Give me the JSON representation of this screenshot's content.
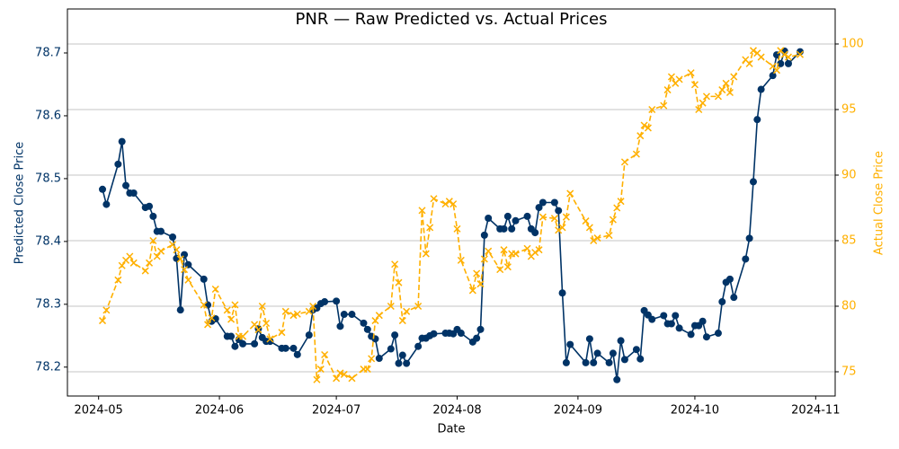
{
  "chart_data": {
    "type": "line",
    "title": "PNR — Raw Predicted vs. Actual Prices",
    "x_label": "Date",
    "y_label": "Predicted Close Price",
    "y2_label": "Actual Close Price",
    "x": [
      "2024-05-02",
      "2024-05-03",
      "2024-05-06",
      "2024-05-07",
      "2024-05-08",
      "2024-05-09",
      "2024-05-10",
      "2024-05-13",
      "2024-05-14",
      "2024-05-15",
      "2024-05-16",
      "2024-05-17",
      "2024-05-20",
      "2024-05-21",
      "2024-05-22",
      "2024-05-23",
      "2024-05-24",
      "2024-05-28",
      "2024-05-29",
      "2024-05-30",
      "2024-05-31",
      "2024-06-03",
      "2024-06-04",
      "2024-06-05",
      "2024-06-06",
      "2024-06-07",
      "2024-06-10",
      "2024-06-11",
      "2024-06-12",
      "2024-06-13",
      "2024-06-14",
      "2024-06-17",
      "2024-06-18",
      "2024-06-20",
      "2024-06-21",
      "2024-06-24",
      "2024-06-25",
      "2024-06-26",
      "2024-06-27",
      "2024-06-28",
      "2024-07-01",
      "2024-07-02",
      "2024-07-03",
      "2024-07-05",
      "2024-07-08",
      "2024-07-09",
      "2024-07-10",
      "2024-07-11",
      "2024-07-12",
      "2024-07-15",
      "2024-07-16",
      "2024-07-17",
      "2024-07-18",
      "2024-07-19",
      "2024-07-22",
      "2024-07-23",
      "2024-07-24",
      "2024-07-25",
      "2024-07-26",
      "2024-07-29",
      "2024-07-30",
      "2024-07-31",
      "2024-08-01",
      "2024-08-02",
      "2024-08-05",
      "2024-08-06",
      "2024-08-07",
      "2024-08-08",
      "2024-08-09",
      "2024-08-12",
      "2024-08-13",
      "2024-08-14",
      "2024-08-15",
      "2024-08-16",
      "2024-08-19",
      "2024-08-20",
      "2024-08-21",
      "2024-08-22",
      "2024-08-23",
      "2024-08-26",
      "2024-08-27",
      "2024-08-28",
      "2024-08-29",
      "2024-08-30",
      "2024-09-03",
      "2024-09-04",
      "2024-09-05",
      "2024-09-06",
      "2024-09-09",
      "2024-09-10",
      "2024-09-11",
      "2024-09-12",
      "2024-09-13",
      "2024-09-16",
      "2024-09-17",
      "2024-09-18",
      "2024-09-19",
      "2024-09-20",
      "2024-09-23",
      "2024-09-24",
      "2024-09-25",
      "2024-09-26",
      "2024-09-27",
      "2024-09-30",
      "2024-10-01",
      "2024-10-02",
      "2024-10-03",
      "2024-10-04",
      "2024-10-07",
      "2024-10-08",
      "2024-10-09",
      "2024-10-10",
      "2024-10-11",
      "2024-10-14",
      "2024-10-15",
      "2024-10-16",
      "2024-10-17",
      "2024-10-18",
      "2024-10-21",
      "2024-10-22",
      "2024-10-23",
      "2024-10-24",
      "2024-10-25",
      "2024-10-28"
    ],
    "series": [
      {
        "name": "Predicted",
        "color": "#003366",
        "marker": "o",
        "linestyle": "solid",
        "axis": "y",
        "values": [
          78.483,
          78.459,
          78.523,
          78.559,
          78.489,
          78.477,
          78.477,
          78.454,
          78.456,
          78.44,
          78.416,
          78.416,
          78.407,
          78.373,
          78.291,
          78.379,
          78.363,
          78.34,
          78.299,
          78.273,
          78.277,
          78.249,
          78.249,
          78.233,
          78.244,
          78.237,
          78.237,
          78.261,
          78.247,
          78.241,
          78.241,
          78.23,
          78.23,
          78.23,
          78.22,
          78.251,
          78.291,
          78.294,
          78.301,
          78.304,
          78.305,
          78.265,
          78.284,
          78.284,
          78.27,
          78.26,
          78.249,
          78.245,
          78.214,
          78.229,
          78.251,
          78.206,
          78.219,
          78.206,
          78.233,
          78.246,
          78.246,
          78.25,
          78.253,
          78.254,
          78.254,
          78.253,
          78.26,
          78.254,
          78.24,
          78.246,
          78.26,
          78.41,
          78.437,
          78.42,
          78.42,
          78.44,
          78.42,
          78.433,
          78.44,
          78.42,
          78.414,
          78.454,
          78.462,
          78.462,
          78.449,
          78.318,
          78.207,
          78.236,
          78.207,
          78.245,
          78.207,
          78.222,
          78.207,
          78.222,
          78.18,
          78.242,
          78.212,
          78.228,
          78.213,
          78.29,
          78.283,
          78.276,
          78.282,
          78.269,
          78.269,
          78.282,
          78.262,
          78.252,
          78.266,
          78.266,
          78.273,
          78.248,
          78.254,
          78.304,
          78.335,
          78.34,
          78.311,
          78.372,
          78.405,
          78.495,
          78.594,
          78.642,
          78.664,
          78.697,
          78.683,
          78.703,
          78.683,
          78.702
        ]
      },
      {
        "name": "Actual",
        "color": "#ffb000",
        "marker": "x",
        "linestyle": "dashed",
        "axis": "y2",
        "values": [
          78.9,
          79.7,
          82.0,
          83.1,
          83.5,
          83.8,
          83.3,
          82.7,
          83.3,
          85.0,
          83.8,
          84.2,
          84.7,
          84.3,
          83.6,
          82.8,
          82.0,
          80.1,
          78.6,
          79.1,
          81.3,
          79.7,
          79.0,
          80.1,
          77.7,
          77.7,
          78.6,
          78.2,
          80.0,
          78.7,
          77.5,
          78.0,
          79.6,
          79.3,
          79.4,
          79.6,
          80.0,
          74.4,
          75.2,
          76.3,
          74.5,
          74.9,
          74.8,
          74.5,
          75.2,
          75.2,
          76.0,
          78.9,
          79.3,
          80.0,
          83.2,
          81.8,
          78.9,
          79.6,
          80.0,
          87.3,
          84.0,
          86.0,
          88.2,
          87.8,
          88.0,
          87.8,
          85.9,
          83.5,
          81.2,
          82.5,
          81.7,
          83.6,
          84.2,
          82.8,
          84.3,
          83.0,
          84.0,
          84.0,
          84.4,
          83.8,
          84.1,
          84.3,
          86.8,
          86.7,
          85.8,
          86.0,
          86.8,
          88.6,
          86.5,
          86.0,
          85.0,
          85.2,
          85.4,
          86.6,
          87.5,
          88.0,
          91.0,
          91.6,
          93.0,
          93.8,
          93.6,
          95.0,
          95.3,
          96.5,
          97.5,
          97.0,
          97.3,
          97.8,
          96.9,
          95.0,
          95.5,
          96.0,
          96.0,
          96.5,
          97.0,
          96.3,
          97.5,
          98.8,
          98.5,
          99.5,
          99.3,
          99.0,
          98.3,
          98.0,
          99.5,
          99.2,
          99.0,
          99.2
        ]
      }
    ],
    "xlim": [
      "2024-04-23",
      "2024-11-06"
    ],
    "xticks": [
      {
        "value": "2024-05-01",
        "label": "2024-05"
      },
      {
        "value": "2024-06-01",
        "label": "2024-06"
      },
      {
        "value": "2024-07-01",
        "label": "2024-07"
      },
      {
        "value": "2024-08-01",
        "label": "2024-08"
      },
      {
        "value": "2024-09-01",
        "label": "2024-09"
      },
      {
        "value": "2024-10-01",
        "label": "2024-10"
      },
      {
        "value": "2024-11-01",
        "label": "2024-11"
      }
    ],
    "ylim": [
      78.154,
      78.77
    ],
    "yticks": [
      78.2,
      78.3,
      78.4,
      78.5,
      78.6,
      78.7
    ],
    "y2lim": [
      73.15,
      102.67
    ],
    "y2ticks": [
      75,
      80,
      85,
      90,
      95,
      100
    ],
    "grid": "y2"
  }
}
